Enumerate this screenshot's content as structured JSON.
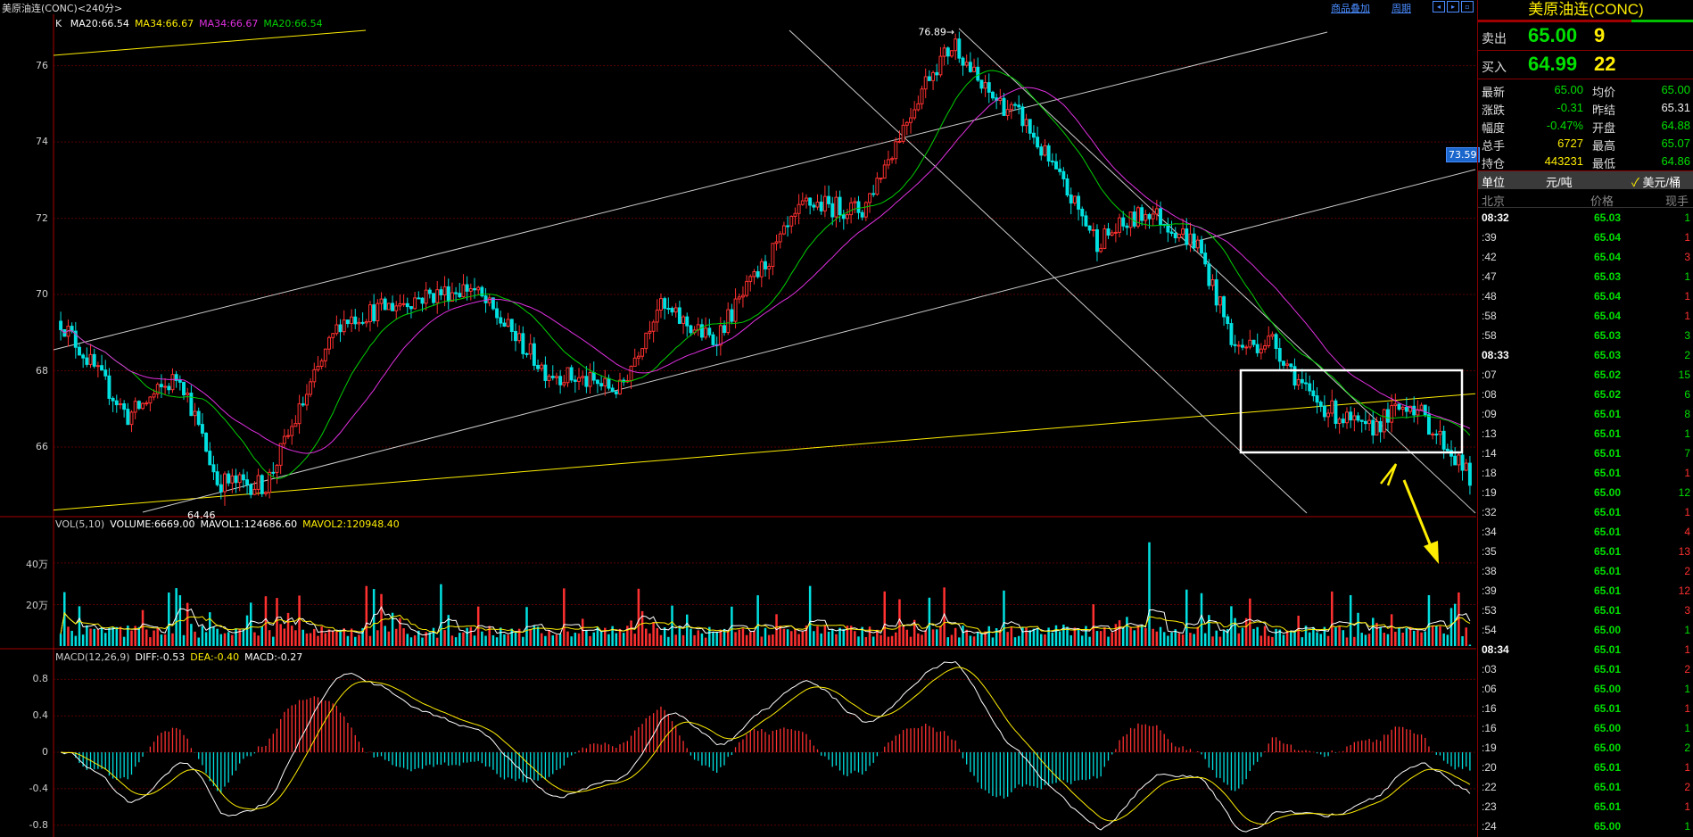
{
  "header": {
    "title": "美原油连(CONC)<240分>",
    "add_label": "商品叠加",
    "period_label": "周期"
  },
  "colors": {
    "up": "#ff3030",
    "down": "#00e0e0",
    "ma20": "#00d000",
    "ma34": "#e030e0",
    "trendline": "#cccccc",
    "yellow": "#ffee00",
    "box": "#ffffff"
  },
  "kline_legend": {
    "k_label": "K",
    "items": [
      {
        "text": "MA20:66.54",
        "color": "#ffffff"
      },
      {
        "text": "MA34:66.67",
        "color": "#ffee00"
      },
      {
        "text": "MA34:66.67",
        "color": "#e030e0"
      },
      {
        "text": "MA20:66.54",
        "color": "#00d000"
      }
    ]
  },
  "vol_legend": {
    "items": [
      {
        "text": "VOL(5,10)",
        "color": "#cccccc"
      },
      {
        "text": "VOLUME:6669.00",
        "color": "#ffffff"
      },
      {
        "text": "MAVOL1:124686.60",
        "color": "#ffffff"
      },
      {
        "text": "MAVOL2:120948.40",
        "color": "#ffee00"
      }
    ]
  },
  "macd_legend": {
    "items": [
      {
        "text": "MACD(12,26,9)",
        "color": "#cccccc"
      },
      {
        "text": "DIFF:-0.53",
        "color": "#ffffff"
      },
      {
        "text": "DEA:-0.40",
        "color": "#ffee00"
      },
      {
        "text": "MACD:-0.27",
        "color": "#ffffff"
      }
    ]
  },
  "price_axis": {
    "labels": [
      "76",
      "74",
      "72",
      "70",
      "68",
      "66"
    ],
    "values": [
      76,
      74,
      72,
      70,
      68,
      66
    ]
  },
  "vol_axis": {
    "labels": [
      "40万",
      "20万"
    ],
    "values": [
      400000,
      200000
    ]
  },
  "macd_axis": {
    "labels": [
      "0.8",
      "0.4",
      "0",
      "-0.4",
      "-0.8"
    ],
    "values": [
      0.8,
      0.4,
      0,
      -0.4,
      -0.8
    ]
  },
  "annotations": {
    "high_label": "76.89",
    "low_label": "64.46",
    "price_tag": "73.59"
  },
  "chart_data": {
    "type": "candlestick",
    "ylim": [
      64.2,
      77.3
    ],
    "high": 76.89,
    "low": 64.46,
    "last_close": 65.0,
    "anchors": [
      [
        0,
        69.3
      ],
      [
        18,
        66.8
      ],
      [
        32,
        67.9
      ],
      [
        42,
        65.1
      ],
      [
        55,
        65.0
      ],
      [
        75,
        69.3
      ],
      [
        95,
        69.9
      ],
      [
        110,
        70.2
      ],
      [
        130,
        68.0
      ],
      [
        150,
        67.5
      ],
      [
        160,
        69.7
      ],
      [
        175,
        68.8
      ],
      [
        200,
        72.4
      ],
      [
        215,
        72.2
      ],
      [
        233,
        75.8
      ],
      [
        240,
        76.6
      ],
      [
        247,
        75.4
      ],
      [
        258,
        74.6
      ],
      [
        278,
        71.4
      ],
      [
        292,
        72.2
      ],
      [
        305,
        71.3
      ],
      [
        315,
        68.6
      ],
      [
        325,
        68.8
      ],
      [
        335,
        67.3
      ],
      [
        350,
        66.4
      ],
      [
        362,
        67.2
      ],
      [
        372,
        66.0
      ],
      [
        378,
        65.2
      ]
    ],
    "volume_ylim": [
      0,
      550000
    ],
    "macd_ylim": [
      -0.9,
      0.95
    ]
  },
  "panel": {
    "title": "美原油连(CONC)",
    "sell": {
      "label": "卖出",
      "price": "65.00",
      "vol": "9"
    },
    "buy": {
      "label": "买入",
      "price": "64.99",
      "vol": "22"
    },
    "stats": [
      {
        "k1": "最新",
        "v1": "65.00",
        "c1": "g",
        "k2": "均价",
        "v2": "65.00",
        "c2": "g"
      },
      {
        "k1": "涨跌",
        "v1": "-0.31",
        "c1": "g",
        "k2": "昨结",
        "v2": "65.31",
        "c2": "w"
      },
      {
        "k1": "幅度",
        "v1": "-0.47%",
        "c1": "g",
        "k2": "开盘",
        "v2": "64.88",
        "c2": "g"
      },
      {
        "k1": "总手",
        "v1": "6727",
        "c1": "y",
        "k2": "最高",
        "v2": "65.07",
        "c2": "g"
      },
      {
        "k1": "持仓",
        "v1": "443231",
        "c1": "y",
        "k2": "最低",
        "v2": "64.86",
        "c2": "g"
      }
    ],
    "unit": {
      "label": "单位",
      "cny": "元/吨",
      "usd": "美元/桶",
      "check": "✓"
    },
    "ticks_header": {
      "time": "北京",
      "price": "价格",
      "vol": "现手"
    },
    "ticks": [
      {
        "t": "08:32",
        "p": "65.03",
        "v": "1",
        "c": "g",
        "big": true
      },
      {
        "t": ":39",
        "p": "65.04",
        "v": "1",
        "c": "r"
      },
      {
        "t": ":42",
        "p": "65.04",
        "v": "3",
        "c": "r"
      },
      {
        "t": ":47",
        "p": "65.03",
        "v": "1",
        "c": "g"
      },
      {
        "t": ":48",
        "p": "65.04",
        "v": "1",
        "c": "r"
      },
      {
        "t": ":58",
        "p": "65.04",
        "v": "1",
        "c": "r"
      },
      {
        "t": ":58",
        "p": "65.03",
        "v": "3",
        "c": "g"
      },
      {
        "t": "08:33",
        "p": "65.03",
        "v": "2",
        "c": "g",
        "big": true
      },
      {
        "t": ":07",
        "p": "65.02",
        "v": "15",
        "c": "g"
      },
      {
        "t": ":08",
        "p": "65.02",
        "v": "6",
        "c": "g"
      },
      {
        "t": ":09",
        "p": "65.01",
        "v": "8",
        "c": "g"
      },
      {
        "t": ":13",
        "p": "65.01",
        "v": "1",
        "c": "g"
      },
      {
        "t": ":14",
        "p": "65.01",
        "v": "7",
        "c": "g"
      },
      {
        "t": ":18",
        "p": "65.01",
        "v": "1",
        "c": "r"
      },
      {
        "t": ":19",
        "p": "65.00",
        "v": "12",
        "c": "g"
      },
      {
        "t": ":32",
        "p": "65.01",
        "v": "1",
        "c": "r"
      },
      {
        "t": ":34",
        "p": "65.01",
        "v": "4",
        "c": "r"
      },
      {
        "t": ":35",
        "p": "65.01",
        "v": "13",
        "c": "r"
      },
      {
        "t": ":38",
        "p": "65.01",
        "v": "2",
        "c": "r"
      },
      {
        "t": ":39",
        "p": "65.01",
        "v": "12",
        "c": "r"
      },
      {
        "t": ":53",
        "p": "65.01",
        "v": "3",
        "c": "r"
      },
      {
        "t": ":54",
        "p": "65.00",
        "v": "1",
        "c": "g"
      },
      {
        "t": "08:34",
        "p": "65.01",
        "v": "1",
        "c": "r",
        "big": true
      },
      {
        "t": ":03",
        "p": "65.01",
        "v": "2",
        "c": "r"
      },
      {
        "t": ":06",
        "p": "65.00",
        "v": "1",
        "c": "g"
      },
      {
        "t": ":16",
        "p": "65.01",
        "v": "1",
        "c": "r"
      },
      {
        "t": ":16",
        "p": "65.00",
        "v": "1",
        "c": "g"
      },
      {
        "t": ":19",
        "p": "65.00",
        "v": "2",
        "c": "g"
      },
      {
        "t": ":20",
        "p": "65.01",
        "v": "1",
        "c": "r"
      },
      {
        "t": ":22",
        "p": "65.01",
        "v": "2",
        "c": "r"
      },
      {
        "t": ":23",
        "p": "65.01",
        "v": "1",
        "c": "r"
      },
      {
        "t": ":24",
        "p": "65.00",
        "v": "1",
        "c": "g"
      }
    ]
  }
}
